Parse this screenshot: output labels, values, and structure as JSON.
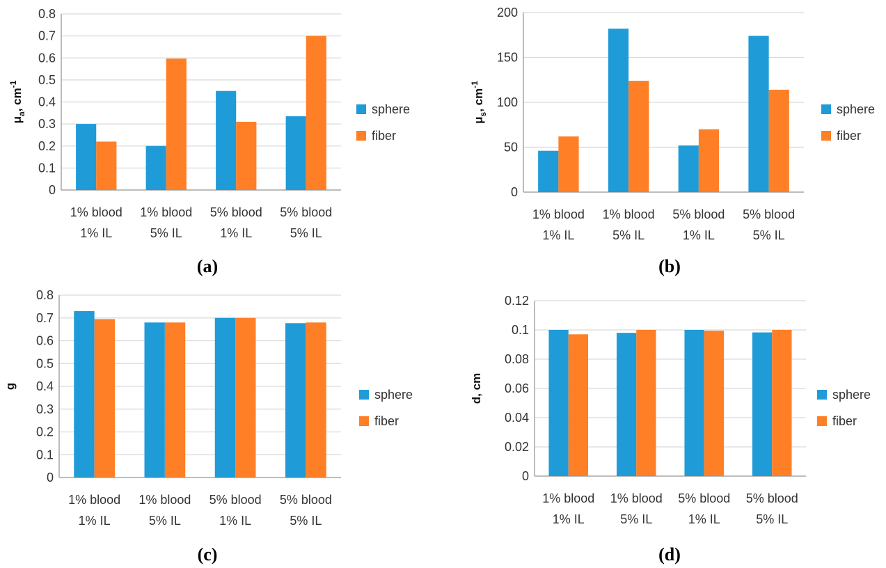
{
  "colors": {
    "sphere": "#1f9bd8",
    "fiber": "#ff7f27",
    "grid": "#d9d9d9",
    "axis": "#a6a6a6"
  },
  "chart_data": [
    {
      "type": "bar",
      "panel_label": "(a)",
      "ylabel": {
        "main": "μ",
        "sub": "a",
        "rest": ", cm",
        "sup": "-1"
      },
      "categories": [
        [
          "1% blood",
          "1% IL"
        ],
        [
          "1% blood",
          "5% IL"
        ],
        [
          "5% blood",
          "1% IL"
        ],
        [
          "5% blood",
          "5% IL"
        ]
      ],
      "series": [
        {
          "name": "sphere",
          "values": [
            0.3,
            0.2,
            0.45,
            0.335
          ]
        },
        {
          "name": "fiber",
          "values": [
            0.22,
            0.597,
            0.31,
            0.7
          ]
        }
      ],
      "ylim": [
        0,
        0.8
      ],
      "yticks": [
        "0",
        "0.1",
        "0.2",
        "0.3",
        "0.4",
        "0.5",
        "0.6",
        "0.7",
        "0.8"
      ],
      "grid": true,
      "legend": "right"
    },
    {
      "type": "bar",
      "panel_label": "(b)",
      "ylabel": {
        "main": "μ",
        "sub": "s",
        "rest": ", cm",
        "sup": "-1"
      },
      "categories": [
        [
          "1% blood",
          "1% IL"
        ],
        [
          "1% blood",
          "5% IL"
        ],
        [
          "5% blood",
          "1% IL"
        ],
        [
          "5% blood",
          "5% IL"
        ]
      ],
      "series": [
        {
          "name": "sphere",
          "values": [
            46,
            182,
            52,
            174
          ]
        },
        {
          "name": "fiber",
          "values": [
            62,
            124,
            70,
            114
          ]
        }
      ],
      "ylim": [
        0,
        200
      ],
      "yticks": [
        "0",
        "50",
        "100",
        "150",
        "200"
      ],
      "grid": true,
      "legend": "right"
    },
    {
      "type": "bar",
      "panel_label": "(c)",
      "ylabel": {
        "main": "g",
        "sub": "",
        "rest": "",
        "sup": ""
      },
      "categories": [
        [
          "1% blood",
          "1% IL"
        ],
        [
          "1% blood",
          "5% IL"
        ],
        [
          "5% blood",
          "1% IL"
        ],
        [
          "5% blood",
          "5% IL"
        ]
      ],
      "series": [
        {
          "name": "sphere",
          "values": [
            0.73,
            0.68,
            0.7,
            0.677
          ]
        },
        {
          "name": "fiber",
          "values": [
            0.695,
            0.68,
            0.7,
            0.68
          ]
        }
      ],
      "ylim": [
        0,
        0.8
      ],
      "yticks": [
        "0",
        "0.1",
        "0.2",
        "0.3",
        "0.4",
        "0.5",
        "0.6",
        "0.7",
        "0.8"
      ],
      "grid": true,
      "legend": "right"
    },
    {
      "type": "bar",
      "panel_label": "(d)",
      "ylabel": {
        "main": "d, cm",
        "sub": "",
        "rest": "",
        "sup": ""
      },
      "categories": [
        [
          "1% blood",
          "1% IL"
        ],
        [
          "1% blood",
          "5% IL"
        ],
        [
          "5% blood",
          "1% IL"
        ],
        [
          "5% blood",
          "5% IL"
        ]
      ],
      "series": [
        {
          "name": "sphere",
          "values": [
            0.1,
            0.098,
            0.1,
            0.0983
          ]
        },
        {
          "name": "fiber",
          "values": [
            0.097,
            0.1,
            0.0995,
            0.1
          ]
        }
      ],
      "ylim": [
        0,
        0.12
      ],
      "yticks": [
        "0",
        "0.02",
        "0.04",
        "0.06",
        "0.08",
        "0.1",
        "0.12"
      ],
      "grid": true,
      "legend": "right"
    }
  ]
}
